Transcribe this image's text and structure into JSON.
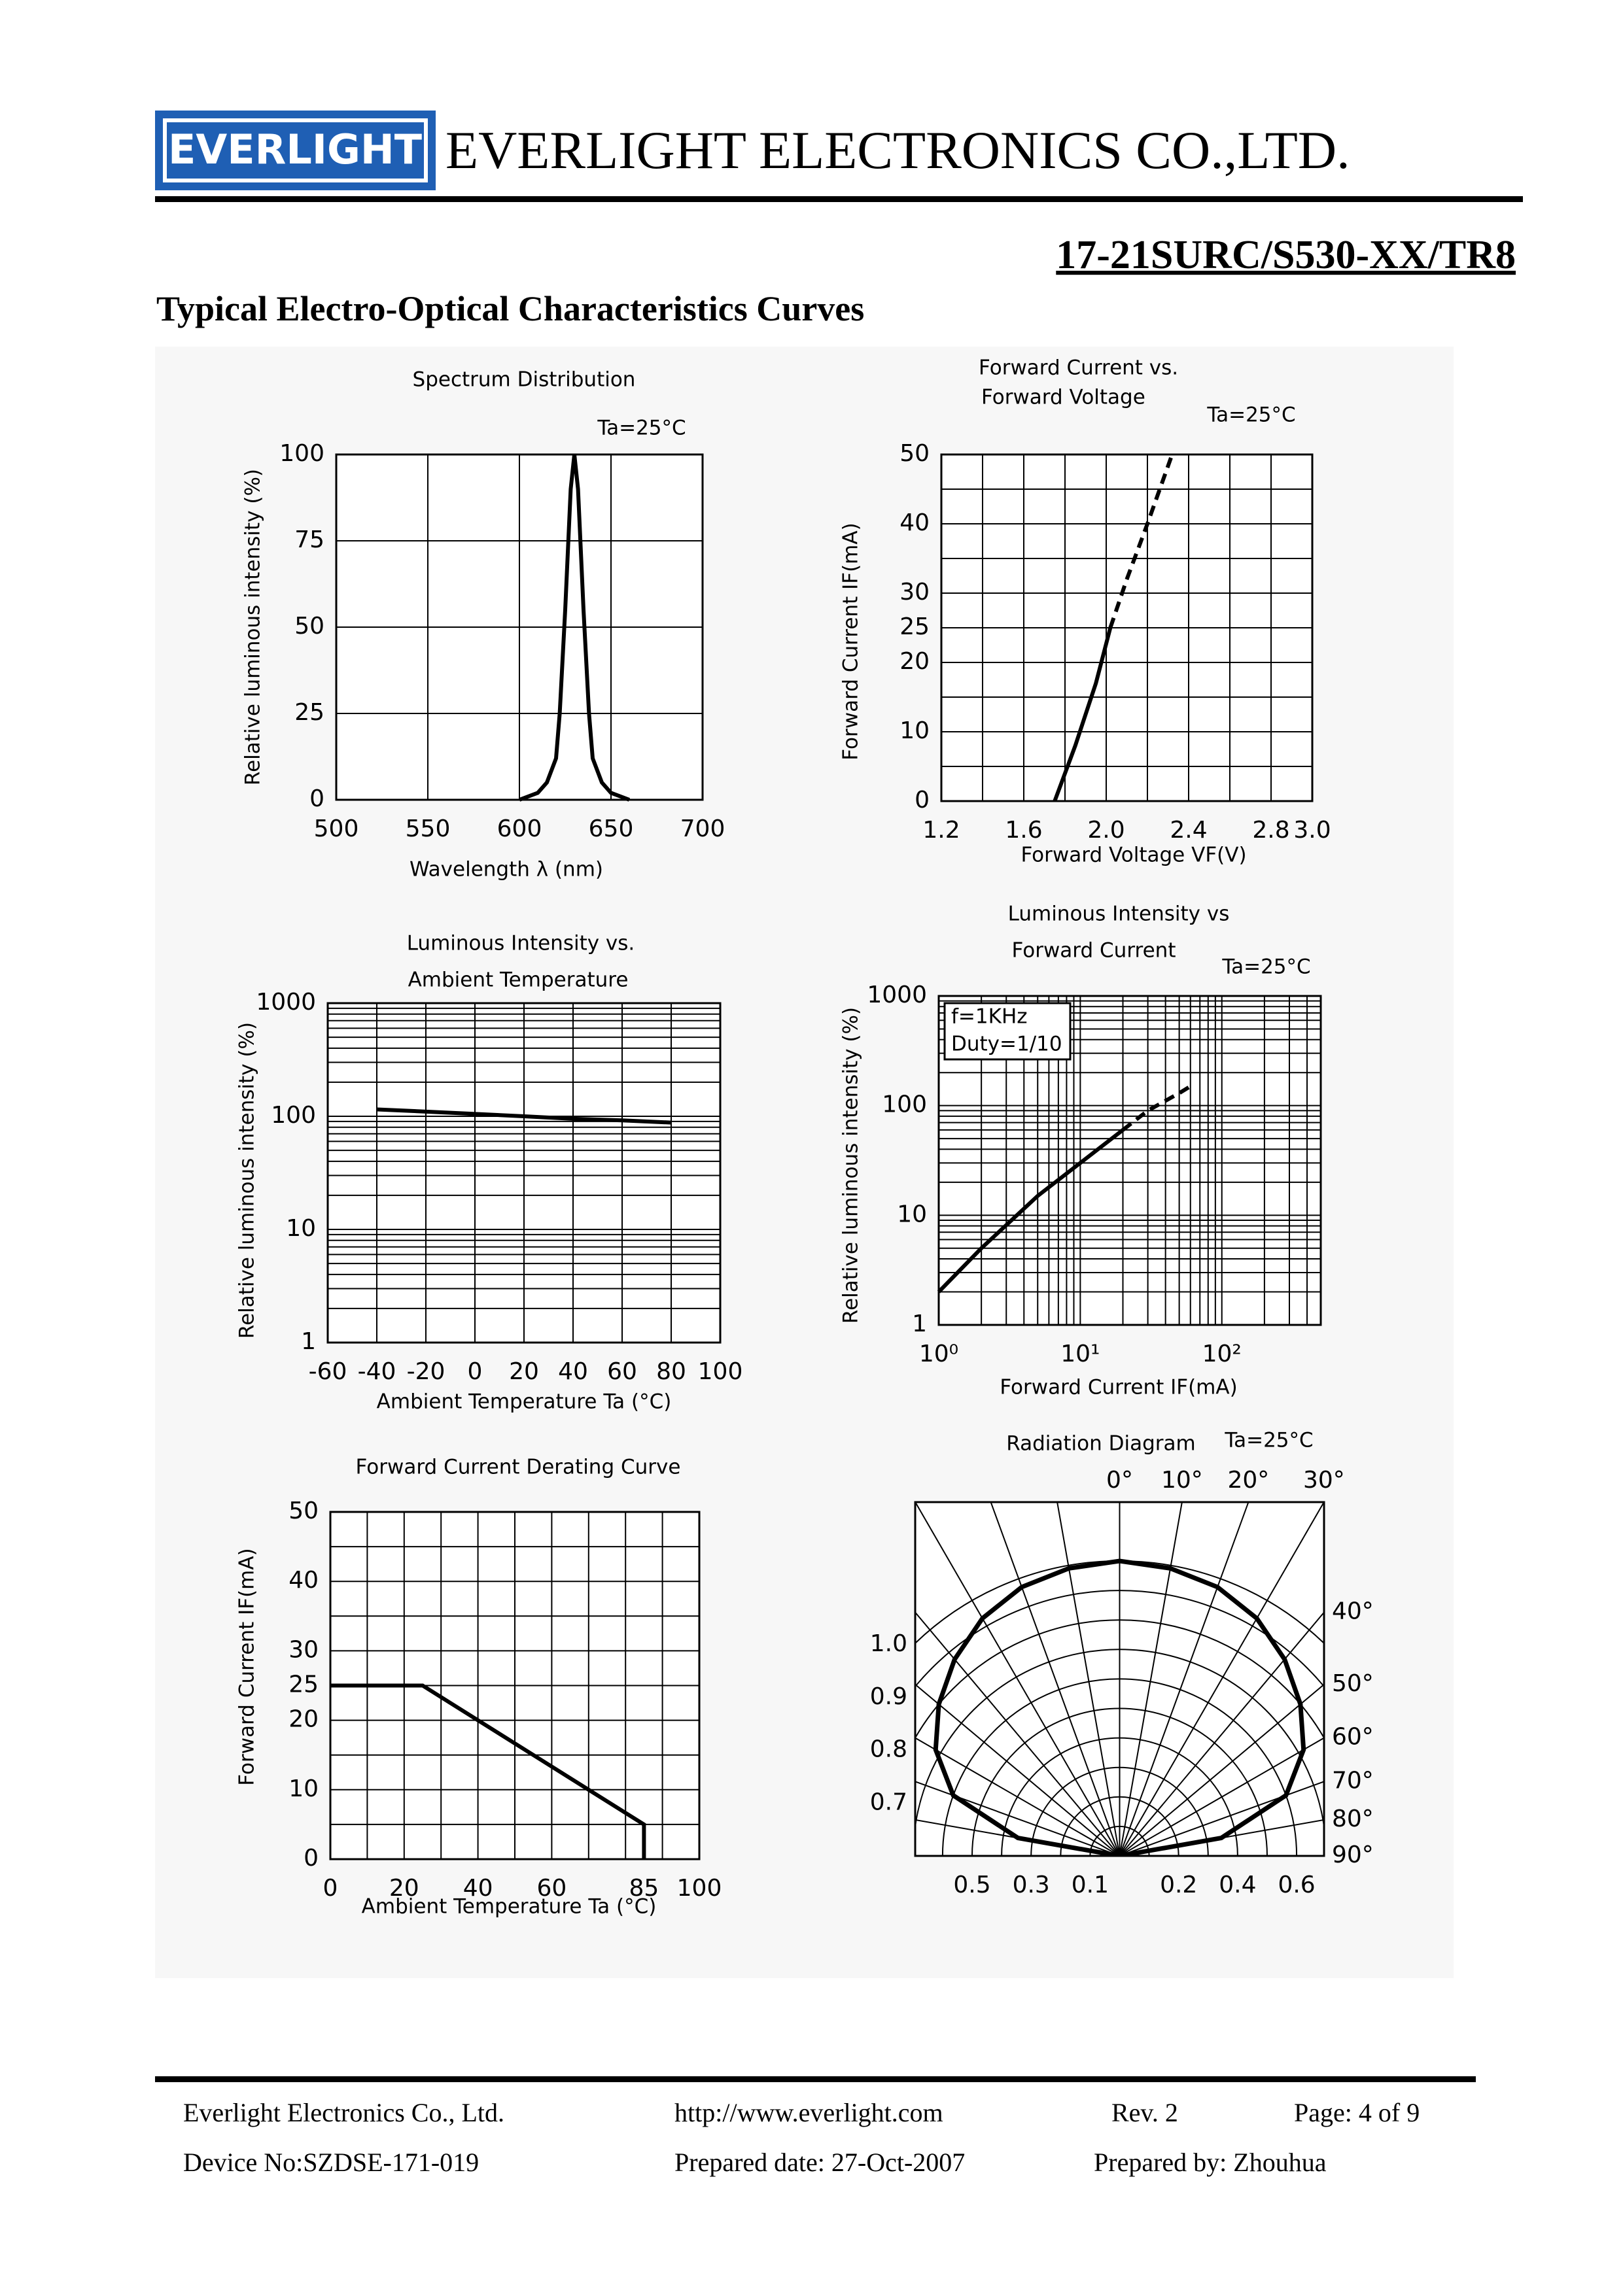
{
  "header": {
    "logo": "EVERLIGHT",
    "company": "EVERLIGHT ELECTRONICS CO.,LTD.",
    "part_number": "17-21SURC/S530-XX/TR8"
  },
  "section_title": "Typical Electro-Optical Characteristics Curves",
  "chart_data": [
    {
      "type": "line",
      "title_lines": [
        "Spectrum Distribution"
      ],
      "annotation": "Ta=25°C",
      "xlabel": "Wavelength λ (nm)",
      "ylabel": "Relative luminous intensity (%)",
      "xlim": [
        500,
        700
      ],
      "xticks": [
        500,
        550,
        600,
        650,
        700
      ],
      "ylim": [
        0,
        100
      ],
      "yticks": [
        0,
        25,
        50,
        75,
        100
      ],
      "xgrid": [
        500,
        550,
        600,
        650,
        700
      ],
      "ygrid": [
        0,
        25,
        50,
        75,
        100
      ],
      "series": [
        {
          "color": "#000000",
          "x": [
            600,
            610,
            615,
            620,
            622,
            625,
            628,
            630,
            632,
            635,
            638,
            640,
            645,
            650,
            660
          ],
          "values": [
            0,
            2,
            5,
            12,
            25,
            55,
            90,
            100,
            90,
            55,
            25,
            12,
            5,
            2,
            0
          ]
        }
      ]
    },
    {
      "type": "line",
      "title_lines": [
        "Forward Current vs.",
        "Forward Voltage"
      ],
      "annotation": "Ta=25°C",
      "xlabel": "Forward Voltage VF(V)",
      "ylabel": "Forward Current IF(mA)",
      "xlim": [
        1.2,
        3.0
      ],
      "xticks": [
        1.2,
        1.6,
        {
          "value": 2,
          "label": "2.0"
        },
        2.4,
        2.8,
        {
          "value": 3,
          "label": "3.0"
        }
      ],
      "ylim": [
        0,
        50
      ],
      "yticks": [
        0,
        10,
        20,
        25,
        30,
        40,
        50
      ],
      "xgrid": [
        1.2,
        1.4,
        1.6,
        1.8,
        2.0,
        2.2,
        2.4,
        2.6,
        2.8,
        3.0
      ],
      "ygrid": [
        0,
        5,
        10,
        15,
        20,
        25,
        30,
        35,
        40,
        45,
        50
      ],
      "series": [
        {
          "color": "#000000",
          "x": [
            1.75,
            1.85,
            1.95,
            2.02
          ],
          "values": [
            0,
            8,
            17,
            25
          ]
        },
        {
          "color": "#000000",
          "dash": true,
          "x": [
            2.02,
            2.1,
            2.2,
            2.32
          ],
          "values": [
            25,
            32,
            40,
            50
          ]
        }
      ]
    },
    {
      "type": "line",
      "title_lines": [
        "Luminous Intensity vs.",
        "Ambient Temperature"
      ],
      "xlabel": "Ambient Temperature Ta (°C)",
      "ylabel": "Relative luminous intensity (%)",
      "xlim": [
        -60,
        100
      ],
      "xticks": [
        -60,
        -40,
        -20,
        0,
        20,
        40,
        60,
        80,
        100
      ],
      "ylim": [
        1,
        1000
      ],
      "yticks": [
        1,
        10,
        100,
        1000
      ],
      "yscale": "log",
      "xgrid": [
        -60,
        -40,
        -20,
        0,
        20,
        40,
        60,
        80,
        100
      ],
      "ygrid": [
        1,
        2,
        3,
        4,
        5,
        6,
        7,
        8,
        9,
        10,
        20,
        30,
        40,
        50,
        60,
        70,
        80,
        90,
        100,
        200,
        300,
        400,
        500,
        600,
        700,
        800,
        900,
        1000
      ],
      "series": [
        {
          "color": "#000000",
          "x": [
            -40,
            -20,
            0,
            20,
            40,
            60,
            80
          ],
          "values": [
            115,
            110,
            105,
            100,
            95,
            92,
            88
          ]
        }
      ]
    },
    {
      "type": "line",
      "title_lines": [
        "Luminous Intensity vs",
        "Forward Current"
      ],
      "annotation": "Ta=25°C",
      "box_lines": [
        "f=1KHz",
        "Duty=1/10"
      ],
      "xlabel": "Forward Current IF(mA)",
      "ylabel": "Relative luminous intensity (%)",
      "xlim": [
        1,
        500
      ],
      "xticks": [
        {
          "value": 1,
          "label": "10⁰"
        },
        {
          "value": 10,
          "label": "10¹"
        },
        {
          "value": 100,
          "label": "10²"
        }
      ],
      "ylim": [
        1,
        1000
      ],
      "yticks": [
        1,
        10,
        100,
        1000
      ],
      "xscale": "log",
      "yscale": "log",
      "xgrid": [
        1,
        2,
        3,
        4,
        5,
        6,
        7,
        8,
        9,
        10,
        20,
        30,
        40,
        50,
        60,
        70,
        80,
        90,
        100,
        200,
        300,
        400,
        500
      ],
      "ygrid": [
        1,
        2,
        3,
        4,
        5,
        6,
        7,
        8,
        9,
        10,
        20,
        30,
        40,
        50,
        60,
        70,
        80,
        90,
        100,
        200,
        300,
        400,
        500,
        600,
        700,
        800,
        900,
        1000
      ],
      "series": [
        {
          "color": "#000000",
          "x": [
            1,
            2,
            5,
            10,
            20
          ],
          "values": [
            2,
            5,
            15,
            30,
            60
          ]
        },
        {
          "color": "#000000",
          "dash": true,
          "x": [
            20,
            30,
            50,
            60
          ],
          "values": [
            60,
            90,
            130,
            150
          ]
        }
      ]
    },
    {
      "type": "line",
      "title_lines": [
        "Forward Current Derating Curve"
      ],
      "xlabel": "Ambient Temperature Ta (°C)",
      "ylabel": "Forward Current IF(mA)",
      "xlim": [
        0,
        100
      ],
      "xticks": [
        0,
        20,
        40,
        60,
        85,
        100
      ],
      "ylim": [
        0,
        50
      ],
      "yticks": [
        0,
        10,
        20,
        25,
        30,
        40,
        50
      ],
      "xgrid": [
        0,
        10,
        20,
        30,
        40,
        50,
        60,
        70,
        80,
        90,
        100
      ],
      "ygrid": [
        0,
        5,
        10,
        15,
        20,
        25,
        30,
        35,
        40,
        45,
        50
      ],
      "series": [
        {
          "color": "#000000",
          "x": [
            0,
            25,
            85,
            85
          ],
          "values": [
            25,
            25,
            5,
            0
          ]
        }
      ]
    },
    {
      "type": "polar",
      "title_lines": [
        "Radiation Diagram"
      ],
      "annotation": "Ta=25°C",
      "angle_ticks": [
        {
          "value": 0,
          "label": "0°"
        },
        {
          "value": 10,
          "label": "10°"
        },
        {
          "value": 20,
          "label": "20°"
        },
        {
          "value": 30,
          "label": "30°"
        },
        {
          "value": 40,
          "label": "40°"
        },
        {
          "value": 50,
          "label": "50°"
        },
        {
          "value": 60,
          "label": "60°"
        },
        {
          "value": 70,
          "label": "70°"
        },
        {
          "value": 80,
          "label": "80°"
        },
        {
          "value": 90,
          "label": "90°"
        }
      ],
      "rgrid": [
        0.1,
        0.2,
        0.3,
        0.4,
        0.5,
        0.6,
        0.7,
        0.8,
        0.9,
        1.0
      ],
      "rticks_left": [
        {
          "value": 1,
          "label": "1.0"
        },
        0.9,
        0.8,
        0.7
      ],
      "rticks_bottom_left": [
        0.5,
        0.3,
        0.1
      ],
      "rticks_bottom_right": [
        0.2,
        0.4,
        0.6
      ],
      "x": [
        -90,
        -80,
        -70,
        -60,
        -50,
        -40,
        -30,
        -20,
        -10,
        0,
        10,
        20,
        30,
        40,
        50,
        60,
        70,
        80,
        90
      ],
      "values": [
        0,
        0.35,
        0.6,
        0.72,
        0.8,
        0.87,
        0.93,
        0.97,
        0.99,
        1.0,
        0.99,
        0.97,
        0.93,
        0.87,
        0.8,
        0.72,
        0.6,
        0.35,
        0
      ],
      "color": "#000000"
    }
  ],
  "footer": {
    "company": "Everlight Electronics Co., Ltd.",
    "url": "http://www.everlight.com",
    "revision": "Rev. 2",
    "page": "Page: 4 of 9",
    "device_no": "Device No:SZDSE-171-019",
    "prepared_date": "Prepared date: 27-Oct-2007",
    "prepared_by": "Prepared by: Zhouhua"
  }
}
